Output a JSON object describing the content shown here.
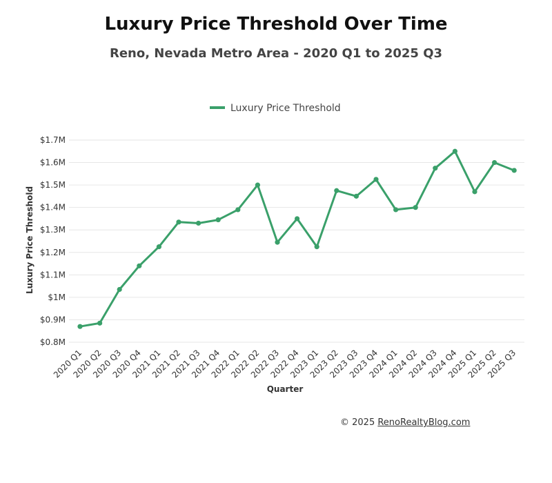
{
  "footer": {
    "copyright": "© 2025",
    "link_text": "RenoRealtyBlog.com"
  },
  "colors": {
    "series": "#3aa06a",
    "grid": "#e6e6e6",
    "text": "#333333"
  },
  "chart_data": {
    "type": "line",
    "title": "Luxury Price Threshold Over Time",
    "subtitle": "Reno, Nevada Metro Area - 2020 Q1 to 2025 Q3",
    "xlabel": "Quarter",
    "ylabel": "Luxury Price Threshold",
    "ylim": [
      0.8,
      1.7
    ],
    "yticks": [
      {
        "value": 0.8,
        "label": "$0.8M"
      },
      {
        "value": 0.9,
        "label": "$0.9M"
      },
      {
        "value": 1.0,
        "label": "$1M"
      },
      {
        "value": 1.1,
        "label": "$1.1M"
      },
      {
        "value": 1.2,
        "label": "$1.2M"
      },
      {
        "value": 1.3,
        "label": "$1.3M"
      },
      {
        "value": 1.4,
        "label": "$1.4M"
      },
      {
        "value": 1.5,
        "label": "$1.5M"
      },
      {
        "value": 1.6,
        "label": "$1.6M"
      },
      {
        "value": 1.7,
        "label": "$1.7M"
      }
    ],
    "grid": true,
    "legend_position": "top",
    "categories": [
      "2020 Q1",
      "2020 Q2",
      "2020 Q3",
      "2020 Q4",
      "2021 Q1",
      "2021 Q2",
      "2021 Q3",
      "2021 Q4",
      "2022 Q1",
      "2022 Q2",
      "2022 Q3",
      "2022 Q4",
      "2023 Q1",
      "2023 Q2",
      "2023 Q3",
      "2023 Q4",
      "2024 Q1",
      "2024 Q2",
      "2024 Q3",
      "2024 Q4",
      "2025 Q1",
      "2025 Q2",
      "2025 Q3"
    ],
    "series": [
      {
        "name": "Luxury Price Threshold",
        "unit": "$M",
        "color": "#3aa06a",
        "values": [
          0.87,
          0.885,
          1.035,
          1.14,
          1.225,
          1.335,
          1.33,
          1.345,
          1.39,
          1.5,
          1.245,
          1.35,
          1.225,
          1.475,
          1.45,
          1.525,
          1.39,
          1.4,
          1.575,
          1.65,
          1.47,
          1.6,
          1.565
        ]
      }
    ]
  }
}
